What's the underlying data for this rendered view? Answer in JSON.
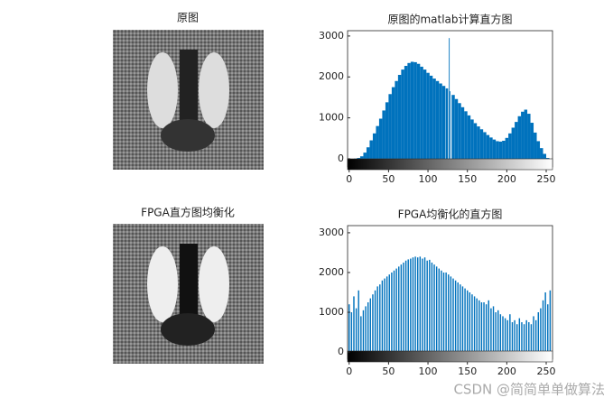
{
  "images": [
    {
      "title": "原图"
    },
    {
      "title": "FPGA直方图均衡化"
    }
  ],
  "chart_data": [
    {
      "type": "bar",
      "title": "原图的matlab计算直方图",
      "color": "#0072bd",
      "x": [
        0,
        4,
        8,
        12,
        16,
        20,
        24,
        28,
        32,
        36,
        40,
        44,
        48,
        52,
        56,
        60,
        64,
        68,
        72,
        76,
        80,
        84,
        88,
        92,
        96,
        100,
        104,
        108,
        112,
        116,
        120,
        124,
        127,
        128,
        132,
        136,
        140,
        144,
        148,
        152,
        156,
        160,
        164,
        168,
        172,
        176,
        180,
        184,
        188,
        192,
        196,
        200,
        204,
        208,
        212,
        216,
        220,
        224,
        228,
        232,
        236,
        240,
        244,
        248,
        252
      ],
      "values": [
        0,
        0,
        5,
        20,
        60,
        150,
        280,
        450,
        620,
        800,
        980,
        1180,
        1380,
        1580,
        1750,
        1900,
        2050,
        2180,
        2270,
        2340,
        2370,
        2360,
        2320,
        2250,
        2180,
        2100,
        2030,
        1960,
        1900,
        1840,
        1780,
        1720,
        2950,
        1650,
        1560,
        1460,
        1360,
        1260,
        1160,
        1060,
        960,
        870,
        790,
        720,
        650,
        580,
        520,
        470,
        430,
        420,
        440,
        510,
        620,
        760,
        900,
        1040,
        1150,
        1200,
        1100,
        880,
        640,
        430,
        260,
        120,
        20
      ],
      "xlim": [
        -2,
        258
      ],
      "ylim": [
        -200,
        3130
      ],
      "xticks": [
        0,
        50,
        100,
        150,
        200,
        250
      ],
      "yticks": [
        0,
        1000,
        2000,
        3000
      ]
    },
    {
      "type": "bar",
      "title": "FPGA均衡化的直方图",
      "color": "#0072bd",
      "x": [
        0,
        3,
        6,
        9,
        12,
        15,
        18,
        21,
        24,
        27,
        30,
        33,
        36,
        39,
        42,
        45,
        48,
        51,
        54,
        57,
        60,
        63,
        66,
        69,
        72,
        75,
        78,
        81,
        84,
        87,
        90,
        93,
        96,
        99,
        102,
        105,
        108,
        111,
        114,
        117,
        120,
        123,
        126,
        129,
        132,
        135,
        138,
        141,
        144,
        147,
        150,
        153,
        156,
        159,
        162,
        165,
        168,
        171,
        174,
        177,
        180,
        183,
        186,
        189,
        192,
        195,
        198,
        201,
        204,
        207,
        210,
        213,
        216,
        219,
        222,
        225,
        228,
        231,
        234,
        237,
        240,
        243,
        246,
        249,
        252,
        255
      ],
      "values": [
        1200,
        1000,
        1400,
        1100,
        1550,
        900,
        1050,
        1150,
        1250,
        1350,
        1450,
        1550,
        1650,
        1700,
        1800,
        1850,
        1900,
        1950,
        2000,
        2050,
        2100,
        2150,
        2200,
        2250,
        2300,
        2330,
        2350,
        2380,
        2400,
        2380,
        2400,
        2350,
        2380,
        2300,
        2320,
        2250,
        2200,
        2150,
        2100,
        2050,
        2000,
        2000,
        1950,
        1900,
        1850,
        1800,
        1750,
        1700,
        1650,
        1600,
        1550,
        1500,
        1450,
        1400,
        1350,
        1300,
        1250,
        1250,
        1200,
        1300,
        1100,
        1150,
        1000,
        1050,
        950,
        900,
        850,
        800,
        950,
        750,
        800,
        700,
        850,
        750,
        700,
        800,
        750,
        700,
        900,
        800,
        1000,
        1100,
        1300,
        1500,
        1200,
        1550
      ],
      "xlim": [
        -2,
        258
      ],
      "ylim": [
        -180,
        3180
      ],
      "xticks": [
        0,
        50,
        100,
        150,
        200,
        250
      ],
      "yticks": [
        0,
        1000,
        2000,
        3000
      ]
    }
  ],
  "watermark": "CSDN @简简单单做算法"
}
